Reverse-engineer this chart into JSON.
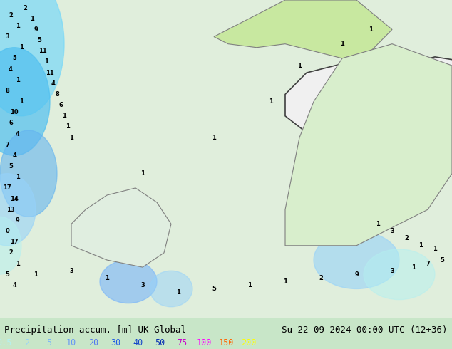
{
  "title_left": "Precipitation accum. [m] UK-Global",
  "title_right": "Su 22-09-2024 00:00 UTC (12+36)",
  "colorbar_values": [
    "0.5",
    "2",
    "5",
    "10",
    "20",
    "30",
    "40",
    "50",
    "75",
    "100",
    "150",
    "200"
  ],
  "colorbar_colors": [
    "#b4f0f0",
    "#96d2fa",
    "#78b4fa",
    "#6496f5",
    "#5078f0",
    "#1e5ae6",
    "#1446c8",
    "#0a32b4",
    "#c800c8",
    "#ff00ff",
    "#ff6600",
    "#ffff00"
  ],
  "bg_color": "#e8f5e8",
  "map_bg": "#f0f0f0",
  "border_color": "#808080",
  "text_color_left": "#000000",
  "text_color_right": "#000000",
  "colorbar_label_color": "#00aaff",
  "fig_width": 6.34,
  "fig_height": 4.9
}
